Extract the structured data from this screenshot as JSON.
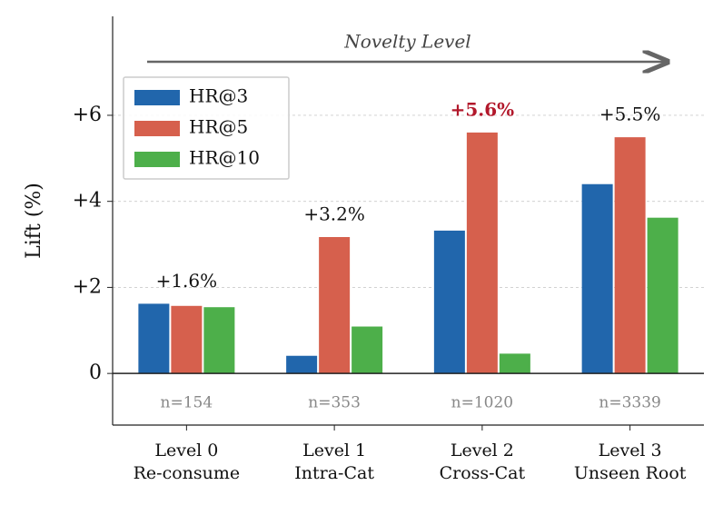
{
  "chart_data": {
    "type": "bar",
    "y_label": "Lift (%)",
    "arrow_label": "Novelty Level",
    "categories": [
      [
        "Level 0",
        "Re-consume"
      ],
      [
        "Level 1",
        "Intra-Cat"
      ],
      [
        "Level 2",
        "Cross-Cat"
      ],
      [
        "Level 3",
        "Unseen Root"
      ]
    ],
    "series": [
      {
        "name": "HR@3",
        "color": "#2166ac",
        "values": [
          1.62,
          0.41,
          3.32,
          4.4
        ]
      },
      {
        "name": "HR@5",
        "color": "#d6604d",
        "values": [
          1.57,
          3.17,
          5.6,
          5.49
        ]
      },
      {
        "name": "HR@10",
        "color": "#4daf4a",
        "values": [
          1.54,
          1.09,
          0.46,
          3.62
        ]
      }
    ],
    "group_annotations": [
      {
        "text": "+1.6%",
        "highlight": false
      },
      {
        "text": "+3.2%",
        "highlight": false
      },
      {
        "text": "+5.6%",
        "highlight": true
      },
      {
        "text": "+5.5%",
        "highlight": false
      }
    ],
    "highlight_color": "#b2182b",
    "sample_labels": [
      "n=154",
      "n=353",
      "n=1020",
      "n=3339"
    ],
    "ylim": [
      -1.2,
      8.3
    ],
    "yticks": [
      0,
      {
        "value": 2,
        "label": "+2"
      },
      {
        "value": 4,
        "label": "+4"
      },
      {
        "value": 6,
        "label": "+6"
      }
    ],
    "grid": true,
    "legend": "upper left"
  }
}
